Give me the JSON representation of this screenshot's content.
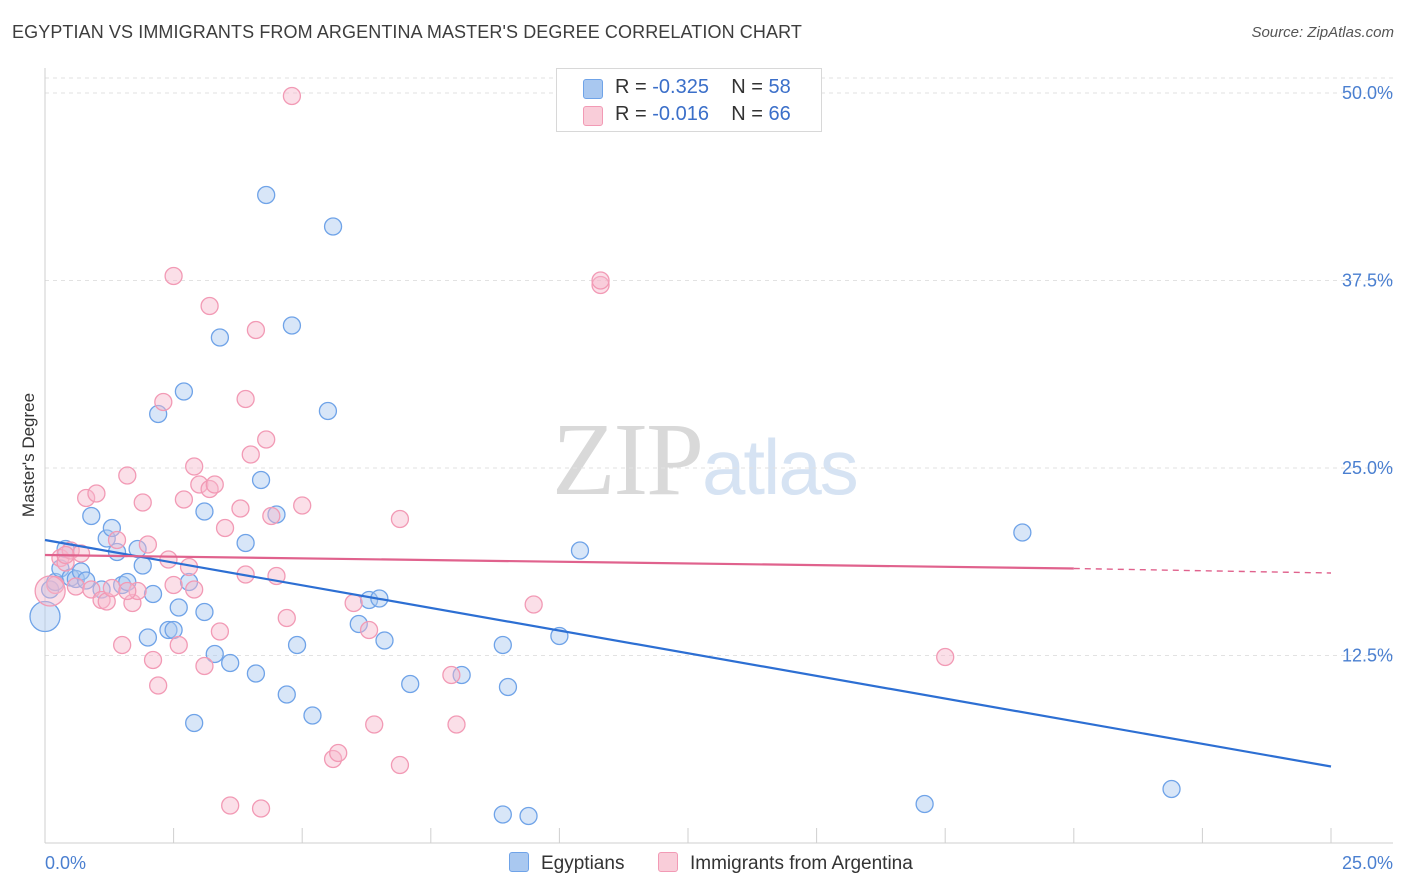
{
  "title": "EGYPTIAN VS IMMIGRANTS FROM ARGENTINA MASTER'S DEGREE CORRELATION CHART",
  "source": "Source: ZipAtlas.com",
  "watermark": {
    "zip": "ZIP",
    "atlas": "atlas"
  },
  "legend": {
    "rows": [
      {
        "r_label": "R = ",
        "r_value": "-0.325",
        "n_label": "N = ",
        "n_value": "58",
        "color": "#a9c8f0"
      },
      {
        "r_label": "R = ",
        "r_value": "-0.016",
        "n_label": "N = ",
        "n_value": "66",
        "color": "#f6b8cb"
      }
    ]
  },
  "bottom_legend": [
    {
      "label": "Egyptians",
      "color": "#a9c8f0"
    },
    {
      "label": "Immigrants from Argentina",
      "color": "#f6b8cb"
    }
  ],
  "chart_data": {
    "type": "scatter",
    "title": "EGYPTIAN VS IMMIGRANTS FROM ARGENTINA MASTER'S DEGREE CORRELATION CHART",
    "xlabel": "",
    "ylabel": "Master's Degree",
    "xlim": [
      0,
      25
    ],
    "ylim": [
      0,
      51
    ],
    "x_tick_labels": [
      "0.0%",
      "25.0%"
    ],
    "y_ticks": [
      12.5,
      25.0,
      37.5,
      50.0
    ],
    "y_tick_labels": [
      "12.5%",
      "25.0%",
      "37.5%",
      "50.0%"
    ],
    "grid": true,
    "series": [
      {
        "name": "Egyptians",
        "color": "#6fa3e8",
        "trend": {
          "x": [
            0,
            25
          ],
          "y": [
            20.2,
            5.1
          ],
          "color": "#2d6fd3"
        },
        "points": [
          [
            0.1,
            16.9
          ],
          [
            0.2,
            17.4
          ],
          [
            0.3,
            18.3
          ],
          [
            0.4,
            19.6
          ],
          [
            0.5,
            17.7
          ],
          [
            0.6,
            17.6
          ],
          [
            0.7,
            18.1
          ],
          [
            0.8,
            17.5
          ],
          [
            0.9,
            21.8
          ],
          [
            1.1,
            16.9
          ],
          [
            1.2,
            20.3
          ],
          [
            1.3,
            21.0
          ],
          [
            1.4,
            19.4
          ],
          [
            1.5,
            17.2
          ],
          [
            1.6,
            17.4
          ],
          [
            1.8,
            19.6
          ],
          [
            1.9,
            18.5
          ],
          [
            2.0,
            13.7
          ],
          [
            2.1,
            16.6
          ],
          [
            2.2,
            28.6
          ],
          [
            2.4,
            14.2
          ],
          [
            2.5,
            14.2
          ],
          [
            2.6,
            15.7
          ],
          [
            2.7,
            30.1
          ],
          [
            2.8,
            17.4
          ],
          [
            2.9,
            8.0
          ],
          [
            3.1,
            22.1
          ],
          [
            3.1,
            15.4
          ],
          [
            3.3,
            12.6
          ],
          [
            3.4,
            33.7
          ],
          [
            3.6,
            12.0
          ],
          [
            3.9,
            20.0
          ],
          [
            4.1,
            11.3
          ],
          [
            4.2,
            24.2
          ],
          [
            4.3,
            43.2
          ],
          [
            4.5,
            21.9
          ],
          [
            4.7,
            9.9
          ],
          [
            4.8,
            34.5
          ],
          [
            4.9,
            13.2
          ],
          [
            5.2,
            8.5
          ],
          [
            5.5,
            28.8
          ],
          [
            5.6,
            41.1
          ],
          [
            6.1,
            14.6
          ],
          [
            6.3,
            16.2
          ],
          [
            6.5,
            16.3
          ],
          [
            6.6,
            13.5
          ],
          [
            7.1,
            10.6
          ],
          [
            8.1,
            11.2
          ],
          [
            8.9,
            1.9
          ],
          [
            8.9,
            13.2
          ],
          [
            9.0,
            10.4
          ],
          [
            9.4,
            1.8
          ],
          [
            10.0,
            13.8
          ],
          [
            10.4,
            19.5
          ],
          [
            17.1,
            2.6
          ],
          [
            19.0,
            20.7
          ],
          [
            21.9,
            3.6
          ],
          [
            0.0,
            15.1
          ]
        ]
      },
      {
        "name": "Immigrants from Argentina",
        "color": "#f29ab5",
        "trend": {
          "x": [
            0,
            20
          ],
          "y": [
            19.2,
            18.3
          ],
          "dashed_to": [
            25,
            18.0
          ],
          "color": "#e0628d"
        },
        "points": [
          [
            0.2,
            17.2
          ],
          [
            0.3,
            19.0
          ],
          [
            0.4,
            18.7
          ],
          [
            0.5,
            19.5
          ],
          [
            0.6,
            17.1
          ],
          [
            0.7,
            19.3
          ],
          [
            0.8,
            23.0
          ],
          [
            0.9,
            16.9
          ],
          [
            1.0,
            23.3
          ],
          [
            1.1,
            16.2
          ],
          [
            1.2,
            16.1
          ],
          [
            1.3,
            17.0
          ],
          [
            1.4,
            20.2
          ],
          [
            1.5,
            13.2
          ],
          [
            1.6,
            24.5
          ],
          [
            1.7,
            16.0
          ],
          [
            1.8,
            16.8
          ],
          [
            1.9,
            22.7
          ],
          [
            2.0,
            19.9
          ],
          [
            2.1,
            12.2
          ],
          [
            2.2,
            10.5
          ],
          [
            2.3,
            29.4
          ],
          [
            2.4,
            18.9
          ],
          [
            2.5,
            17.2
          ],
          [
            2.5,
            37.8
          ],
          [
            2.6,
            13.2
          ],
          [
            2.7,
            22.9
          ],
          [
            2.8,
            18.4
          ],
          [
            2.9,
            25.1
          ],
          [
            3.0,
            23.9
          ],
          [
            3.1,
            11.8
          ],
          [
            3.2,
            35.8
          ],
          [
            3.2,
            23.6
          ],
          [
            3.3,
            23.9
          ],
          [
            3.4,
            14.1
          ],
          [
            3.5,
            21.0
          ],
          [
            3.6,
            2.5
          ],
          [
            3.8,
            22.3
          ],
          [
            3.9,
            29.6
          ],
          [
            3.9,
            17.9
          ],
          [
            4.0,
            25.9
          ],
          [
            4.1,
            34.2
          ],
          [
            4.2,
            2.3
          ],
          [
            4.3,
            26.9
          ],
          [
            4.4,
            21.8
          ],
          [
            4.5,
            17.8
          ],
          [
            4.7,
            15.0
          ],
          [
            4.8,
            49.8
          ],
          [
            5.0,
            22.5
          ],
          [
            5.6,
            5.6
          ],
          [
            5.7,
            6.0
          ],
          [
            6.0,
            16.0
          ],
          [
            6.3,
            14.2
          ],
          [
            6.4,
            7.9
          ],
          [
            6.9,
            5.2
          ],
          [
            6.9,
            21.6
          ],
          [
            7.9,
            11.2
          ],
          [
            8.0,
            7.9
          ],
          [
            9.5,
            15.9
          ],
          [
            10.8,
            37.2
          ],
          [
            10.8,
            37.5
          ],
          [
            17.5,
            12.4
          ],
          [
            1.6,
            16.8
          ],
          [
            0.4,
            19.2
          ],
          [
            2.9,
            16.9
          ],
          [
            0.1,
            16.8
          ]
        ]
      }
    ]
  }
}
